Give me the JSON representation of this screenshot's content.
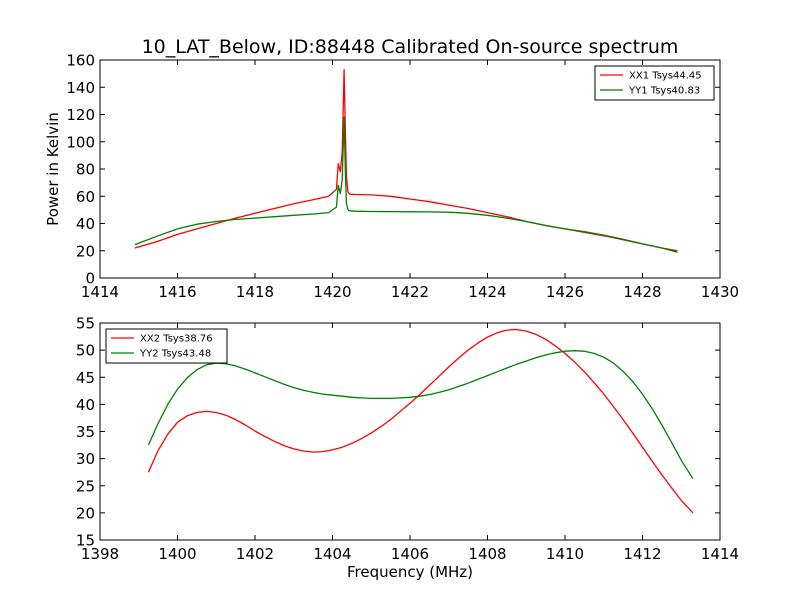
{
  "title": "10_LAT_Below, ID:88448 Calibrated On-source spectrum",
  "chart_data": [
    {
      "type": "line",
      "xlabel": "",
      "ylabel": "Power in Kelvin",
      "xlim": [
        1414,
        1430
      ],
      "ylim": [
        0,
        160
      ],
      "xticks": [
        1414,
        1416,
        1418,
        1420,
        1422,
        1424,
        1426,
        1428,
        1430
      ],
      "yticks": [
        0,
        20,
        40,
        60,
        80,
        100,
        120,
        140,
        160
      ],
      "legend_position": "top-right",
      "series": [
        {
          "name": "XX1 Tsys44.45",
          "color": "#ff0000",
          "x": [
            1414.9,
            1415.5,
            1416.0,
            1416.5,
            1417.0,
            1417.5,
            1418.0,
            1418.5,
            1419.0,
            1419.5,
            1419.9,
            1420.1,
            1420.15,
            1420.2,
            1420.25,
            1420.3,
            1420.33,
            1420.36,
            1420.4,
            1420.45,
            1420.6,
            1421.0,
            1421.5,
            1422.0,
            1422.5,
            1423.0,
            1423.5,
            1424.0,
            1424.5,
            1425.0,
            1425.5,
            1426.0,
            1426.5,
            1427.0,
            1427.5,
            1428.0,
            1428.5,
            1428.9
          ],
          "y": [
            22,
            27,
            32,
            36,
            40,
            44,
            47.5,
            51,
            54.5,
            57.5,
            60,
            65,
            84,
            78,
            92,
            153,
            110,
            75,
            63,
            61.5,
            61.3,
            61,
            60,
            58,
            56,
            53.5,
            51,
            48,
            45,
            41.5,
            38.5,
            36,
            33.5,
            31,
            28,
            25,
            22,
            20
          ]
        },
        {
          "name": "YY1 Tsys40.83",
          "color": "#008000",
          "x": [
            1414.9,
            1415.5,
            1416.0,
            1416.5,
            1417.0,
            1417.5,
            1418.0,
            1418.5,
            1419.0,
            1419.5,
            1419.9,
            1420.1,
            1420.15,
            1420.2,
            1420.25,
            1420.3,
            1420.33,
            1420.36,
            1420.4,
            1420.45,
            1420.6,
            1421.0,
            1421.5,
            1422.0,
            1422.5,
            1423.0,
            1423.5,
            1424.0,
            1424.5,
            1425.0,
            1425.5,
            1426.0,
            1426.5,
            1427.0,
            1427.5,
            1428.0,
            1428.5,
            1428.9
          ],
          "y": [
            24.5,
            31,
            36,
            39.5,
            41.5,
            43,
            44,
            45,
            46,
            47,
            48,
            52,
            68,
            62,
            72,
            118,
            80,
            55,
            50,
            49.3,
            49,
            48.8,
            48.7,
            48.6,
            48.5,
            48.3,
            47.5,
            46,
            44,
            41.5,
            38.5,
            36,
            34,
            31.5,
            28.5,
            25,
            22,
            19
          ]
        }
      ]
    },
    {
      "type": "line",
      "xlabel": "Frequency (MHz)",
      "ylabel": "",
      "xlim": [
        1398,
        1414
      ],
      "ylim": [
        15,
        55
      ],
      "xticks": [
        1398,
        1400,
        1402,
        1404,
        1406,
        1408,
        1410,
        1412,
        1414
      ],
      "yticks": [
        15,
        20,
        25,
        30,
        35,
        40,
        45,
        50,
        55
      ],
      "legend_position": "top-left",
      "series": [
        {
          "name": "XX2 Tsys38.76",
          "color": "#ff0000",
          "x": [
            1399.25,
            1399.5,
            1399.75,
            1400.0,
            1400.25,
            1400.5,
            1400.75,
            1401.0,
            1401.25,
            1401.5,
            1401.75,
            1402.0,
            1402.25,
            1402.5,
            1402.75,
            1403.0,
            1403.25,
            1403.5,
            1403.75,
            1404.0,
            1404.25,
            1404.5,
            1404.75,
            1405.0,
            1405.25,
            1405.5,
            1405.75,
            1406.0,
            1406.25,
            1406.5,
            1406.75,
            1407.0,
            1407.25,
            1407.5,
            1407.75,
            1408.0,
            1408.25,
            1408.5,
            1408.75,
            1409.0,
            1409.25,
            1409.5,
            1409.75,
            1410.0,
            1410.25,
            1410.5,
            1410.75,
            1411.0,
            1411.25,
            1411.5,
            1411.75,
            1412.0,
            1412.25,
            1412.5,
            1412.75,
            1413.0,
            1413.3
          ],
          "y": [
            27.5,
            31.5,
            34.5,
            36.7,
            37.9,
            38.5,
            38.7,
            38.5,
            38,
            37.2,
            36.2,
            35.1,
            34.1,
            33.2,
            32.4,
            31.8,
            31.4,
            31.2,
            31.3,
            31.6,
            32.1,
            32.8,
            33.7,
            34.7,
            35.9,
            37.2,
            38.7,
            40.2,
            41.8,
            43.5,
            45.2,
            46.9,
            48.5,
            50,
            51.3,
            52.4,
            53.2,
            53.7,
            53.8,
            53.5,
            52.9,
            52,
            50.8,
            49.4,
            47.8,
            46,
            44,
            41.9,
            39.6,
            37.2,
            34.7,
            32.1,
            29.5,
            27,
            24.6,
            22.3,
            20
          ]
        },
        {
          "name": "YY2 Tsys43.48",
          "color": "#008000",
          "x": [
            1399.25,
            1399.5,
            1399.75,
            1400.0,
            1400.25,
            1400.5,
            1400.75,
            1401.0,
            1401.25,
            1401.5,
            1401.75,
            1402.0,
            1402.25,
            1402.5,
            1402.75,
            1403.0,
            1403.25,
            1403.5,
            1403.75,
            1404.0,
            1404.25,
            1404.5,
            1404.75,
            1405.0,
            1405.25,
            1405.5,
            1405.75,
            1406.0,
            1406.25,
            1406.5,
            1406.75,
            1407.0,
            1407.25,
            1407.5,
            1407.75,
            1408.0,
            1408.25,
            1408.5,
            1408.75,
            1409.0,
            1409.25,
            1409.5,
            1409.75,
            1410.0,
            1410.25,
            1410.5,
            1410.75,
            1411.0,
            1411.25,
            1411.5,
            1411.75,
            1412.0,
            1412.25,
            1412.5,
            1412.75,
            1413.0,
            1413.3
          ],
          "y": [
            32.5,
            36.5,
            40,
            42.8,
            44.9,
            46.4,
            47.3,
            47.6,
            47.5,
            47.1,
            46.5,
            45.8,
            45.1,
            44.4,
            43.7,
            43.1,
            42.6,
            42.2,
            41.9,
            41.7,
            41.5,
            41.3,
            41.2,
            41.1,
            41.1,
            41.1,
            41.2,
            41.3,
            41.5,
            41.8,
            42.2,
            42.7,
            43.3,
            43.9,
            44.6,
            45.3,
            46,
            46.7,
            47.4,
            48,
            48.6,
            49.1,
            49.5,
            49.8,
            49.9,
            49.8,
            49.4,
            48.7,
            47.6,
            46.1,
            44.2,
            41.9,
            39.2,
            36.2,
            33,
            29.7,
            26.3
          ]
        }
      ]
    }
  ]
}
